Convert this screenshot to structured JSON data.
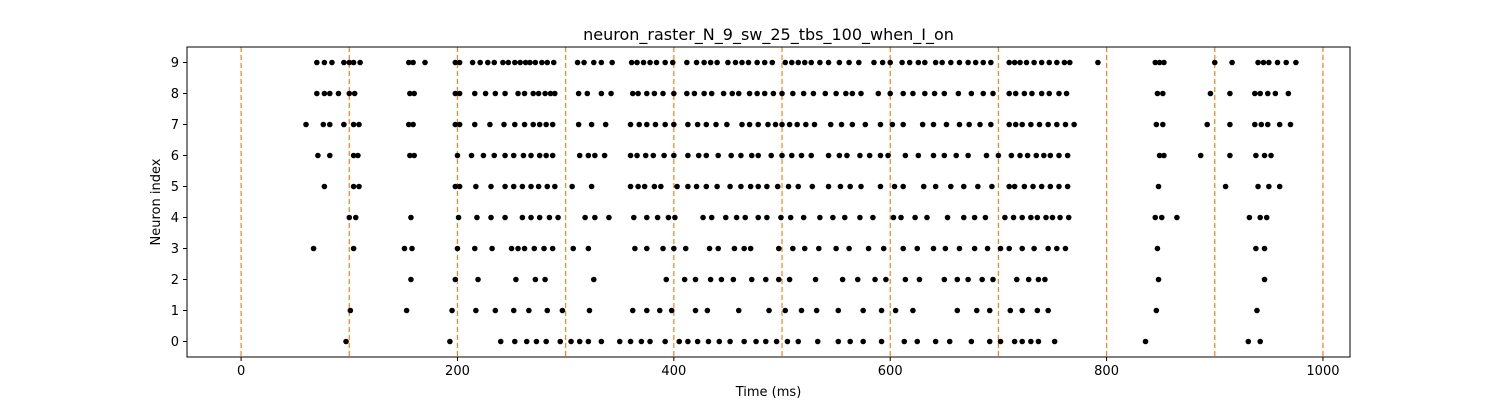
{
  "chart_data": {
    "type": "scatter",
    "title": "neuron_raster_N_9_sw_25_tbs_100_when_I_on",
    "xlabel": "Time (ms)",
    "ylabel": "Neuron index",
    "xlim": [
      -50,
      1025
    ],
    "ylim": [
      -0.5,
      9.5
    ],
    "xticks": [
      0,
      200,
      400,
      600,
      800,
      1000
    ],
    "yticks": [
      0,
      1,
      2,
      3,
      4,
      5,
      6,
      7,
      8,
      9
    ],
    "grid": false,
    "marker_color": "#000000",
    "vlines": {
      "x": [
        0,
        100,
        200,
        300,
        400,
        500,
        600,
        700,
        800,
        900,
        1000
      ],
      "color": "#ff7f0e",
      "style": "dashed"
    },
    "rows": [
      {
        "neuron": 0,
        "spike_times": [
          97,
          193,
          240,
          253,
          264,
          273,
          282,
          295,
          305,
          313,
          321,
          333,
          350,
          360,
          370,
          378,
          392,
          405,
          413,
          422,
          432,
          442,
          452,
          465,
          476,
          485,
          495,
          505,
          515,
          533,
          552,
          563,
          575,
          592,
          613,
          625,
          642,
          655,
          675,
          692,
          702,
          715,
          722,
          730,
          737,
          752,
          836,
          931,
          942
        ]
      },
      {
        "neuron": 1,
        "spike_times": [
          101,
          153,
          195,
          217,
          235,
          252,
          266,
          283,
          297,
          322,
          362,
          375,
          387,
          398,
          420,
          431,
          460,
          488,
          503,
          518,
          532,
          552,
          575,
          592,
          605,
          621,
          662,
          680,
          692,
          711,
          722,
          736,
          746,
          846,
          939
        ]
      },
      {
        "neuron": 2,
        "spike_times": [
          157,
          198,
          219,
          254,
          272,
          281,
          326,
          393,
          410,
          420,
          434,
          444,
          455,
          472,
          485,
          497,
          507,
          531,
          556,
          570,
          586,
          596,
          614,
          627,
          650,
          662,
          672,
          685,
          695,
          717,
          728,
          737,
          743,
          848,
          946
        ]
      },
      {
        "neuron": 3,
        "spike_times": [
          67,
          104,
          151,
          158,
          200,
          216,
          232,
          250,
          256,
          262,
          271,
          280,
          288,
          307,
          321,
          364,
          375,
          390,
          400,
          411,
          433,
          441,
          456,
          465,
          471,
          497,
          510,
          521,
          534,
          550,
          562,
          580,
          594,
          612,
          625,
          640,
          651,
          664,
          678,
          690,
          702,
          710,
          722,
          733,
          746,
          754,
          762,
          847,
          938,
          946
        ]
      },
      {
        "neuron": 4,
        "spike_times": [
          100,
          106,
          157,
          201,
          218,
          231,
          244,
          260,
          268,
          276,
          285,
          293,
          318,
          327,
          340,
          363,
          375,
          385,
          395,
          401,
          427,
          435,
          448,
          458,
          466,
          478,
          486,
          499,
          508,
          520,
          535,
          547,
          558,
          572,
          584,
          603,
          610,
          623,
          634,
          653,
          668,
          678,
          688,
          706,
          714,
          722,
          730,
          736,
          744,
          750,
          757,
          765,
          845,
          851,
          865,
          932,
          942,
          948
        ]
      },
      {
        "neuron": 5,
        "spike_times": [
          77,
          104,
          109,
          198,
          202,
          217,
          231,
          244,
          252,
          260,
          268,
          275,
          283,
          290,
          306,
          324,
          360,
          367,
          373,
          382,
          388,
          403,
          413,
          421,
          430,
          440,
          452,
          462,
          471,
          478,
          486,
          496,
          506,
          515,
          528,
          543,
          554,
          563,
          573,
          591,
          604,
          612,
          631,
          642,
          656,
          668,
          681,
          694,
          710,
          715,
          724,
          732,
          740,
          748,
          756,
          764,
          848,
          910,
          940,
          950,
          960
        ]
      },
      {
        "neuron": 6,
        "spike_times": [
          71,
          82,
          104,
          108,
          156,
          160,
          200,
          213,
          224,
          234,
          244,
          252,
          261,
          268,
          276,
          282,
          288,
          313,
          321,
          327,
          336,
          360,
          366,
          374,
          381,
          391,
          400,
          413,
          423,
          430,
          441,
          453,
          462,
          472,
          478,
          490,
          500,
          509,
          518,
          527,
          543,
          553,
          560,
          572,
          581,
          591,
          598,
          614,
          626,
          640,
          650,
          661,
          672,
          689,
          700,
          712,
          720,
          727,
          735,
          742,
          748,
          756,
          764,
          849,
          853,
          887,
          914,
          938,
          946,
          952
        ]
      },
      {
        "neuron": 7,
        "spike_times": [
          60,
          76,
          82,
          95,
          104,
          109,
          155,
          159,
          198,
          202,
          216,
          230,
          243,
          253,
          262,
          270,
          276,
          282,
          288,
          312,
          324,
          337,
          360,
          368,
          375,
          383,
          392,
          400,
          413,
          422,
          430,
          439,
          449,
          463,
          470,
          478,
          487,
          494,
          500,
          507,
          514,
          522,
          530,
          545,
          555,
          565,
          577,
          591,
          602,
          612,
          630,
          640,
          652,
          664,
          673,
          683,
          693,
          710,
          716,
          722,
          730,
          738,
          746,
          754,
          762,
          770,
          846,
          852,
          893,
          914,
          937,
          943,
          949,
          960,
          970
        ]
      },
      {
        "neuron": 8,
        "spike_times": [
          70,
          77,
          82,
          90,
          100,
          105,
          156,
          160,
          198,
          202,
          216,
          226,
          235,
          244,
          256,
          262,
          270,
          275,
          281,
          286,
          290,
          312,
          320,
          333,
          342,
          362,
          367,
          375,
          382,
          390,
          400,
          412,
          419,
          428,
          435,
          446,
          454,
          460,
          470,
          477,
          484,
          492,
          500,
          510,
          520,
          529,
          540,
          550,
          559,
          565,
          573,
          589,
          600,
          612,
          621,
          632,
          641,
          650,
          663,
          675,
          686,
          695,
          710,
          716,
          724,
          731,
          740,
          747,
          756,
          763,
          847,
          852,
          896,
          914,
          937,
          942,
          949,
          956,
          968
        ]
      },
      {
        "neuron": 9,
        "spike_times": [
          70,
          77,
          84,
          95,
          100,
          104,
          110,
          155,
          159,
          170,
          198,
          202,
          214,
          221,
          228,
          234,
          242,
          247,
          253,
          258,
          263,
          267,
          272,
          278,
          283,
          289,
          311,
          317,
          326,
          333,
          343,
          361,
          366,
          372,
          378,
          384,
          392,
          399,
          412,
          421,
          428,
          434,
          440,
          450,
          457,
          463,
          469,
          477,
          484,
          491,
          503,
          509,
          515,
          521,
          527,
          535,
          543,
          553,
          562,
          571,
          585,
          593,
          600,
          611,
          618,
          626,
          632,
          642,
          648,
          656,
          664,
          672,
          679,
          686,
          693,
          710,
          715,
          720,
          726,
          733,
          740,
          747,
          754,
          761,
          766,
          792,
          845,
          849,
          853,
          900,
          916,
          940,
          945,
          950,
          958,
          966,
          975
        ]
      }
    ]
  }
}
